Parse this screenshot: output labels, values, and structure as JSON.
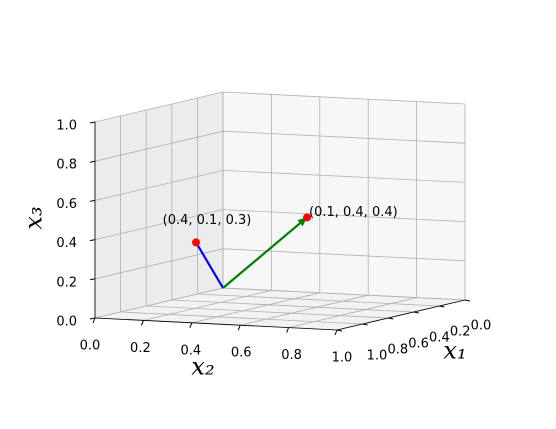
{
  "chart_data": {
    "type": "vector3d",
    "xlabel": "x₁",
    "ylabel": "x₂",
    "zlabel": "x₃",
    "xlim": [
      0,
      1
    ],
    "ylim": [
      0,
      1
    ],
    "zlim": [
      0,
      1
    ],
    "xticks": [
      {
        "value": 0,
        "label": "0.0"
      },
      {
        "value": 0.2,
        "label": "0.2"
      },
      {
        "value": 0.4,
        "label": "0.4"
      },
      {
        "value": 0.6,
        "label": "0.6"
      },
      {
        "value": 0.8,
        "label": "0.8"
      },
      {
        "value": 1,
        "label": "1.0"
      }
    ],
    "yticks": [
      {
        "value": 0,
        "label": "0.0"
      },
      {
        "value": 0.2,
        "label": "0.2"
      },
      {
        "value": 0.4,
        "label": "0.4"
      },
      {
        "value": 0.6,
        "label": "0.6"
      },
      {
        "value": 0.8,
        "label": "0.8"
      },
      {
        "value": 1,
        "label": "1.0"
      }
    ],
    "zticks": [
      {
        "value": 0,
        "label": "0.0"
      },
      {
        "value": 0.2,
        "label": "0.2"
      },
      {
        "value": 0.4,
        "label": "0.4"
      },
      {
        "value": 0.6,
        "label": "0.6"
      },
      {
        "value": 0.8,
        "label": "0.8"
      },
      {
        "value": 1,
        "label": "1.0"
      }
    ],
    "grid": true,
    "point_color": "#ff0000",
    "vectors": [
      {
        "x": 0.4,
        "y": 0.1,
        "z": 0.3,
        "label": "(0.4, 0.1, 0.3)",
        "color": "#0000ff",
        "arrow": false
      },
      {
        "x": 0.1,
        "y": 0.4,
        "z": 0.4,
        "label": "(0.1, 0.4, 0.4)",
        "color": "#008000",
        "arrow": true
      }
    ]
  }
}
